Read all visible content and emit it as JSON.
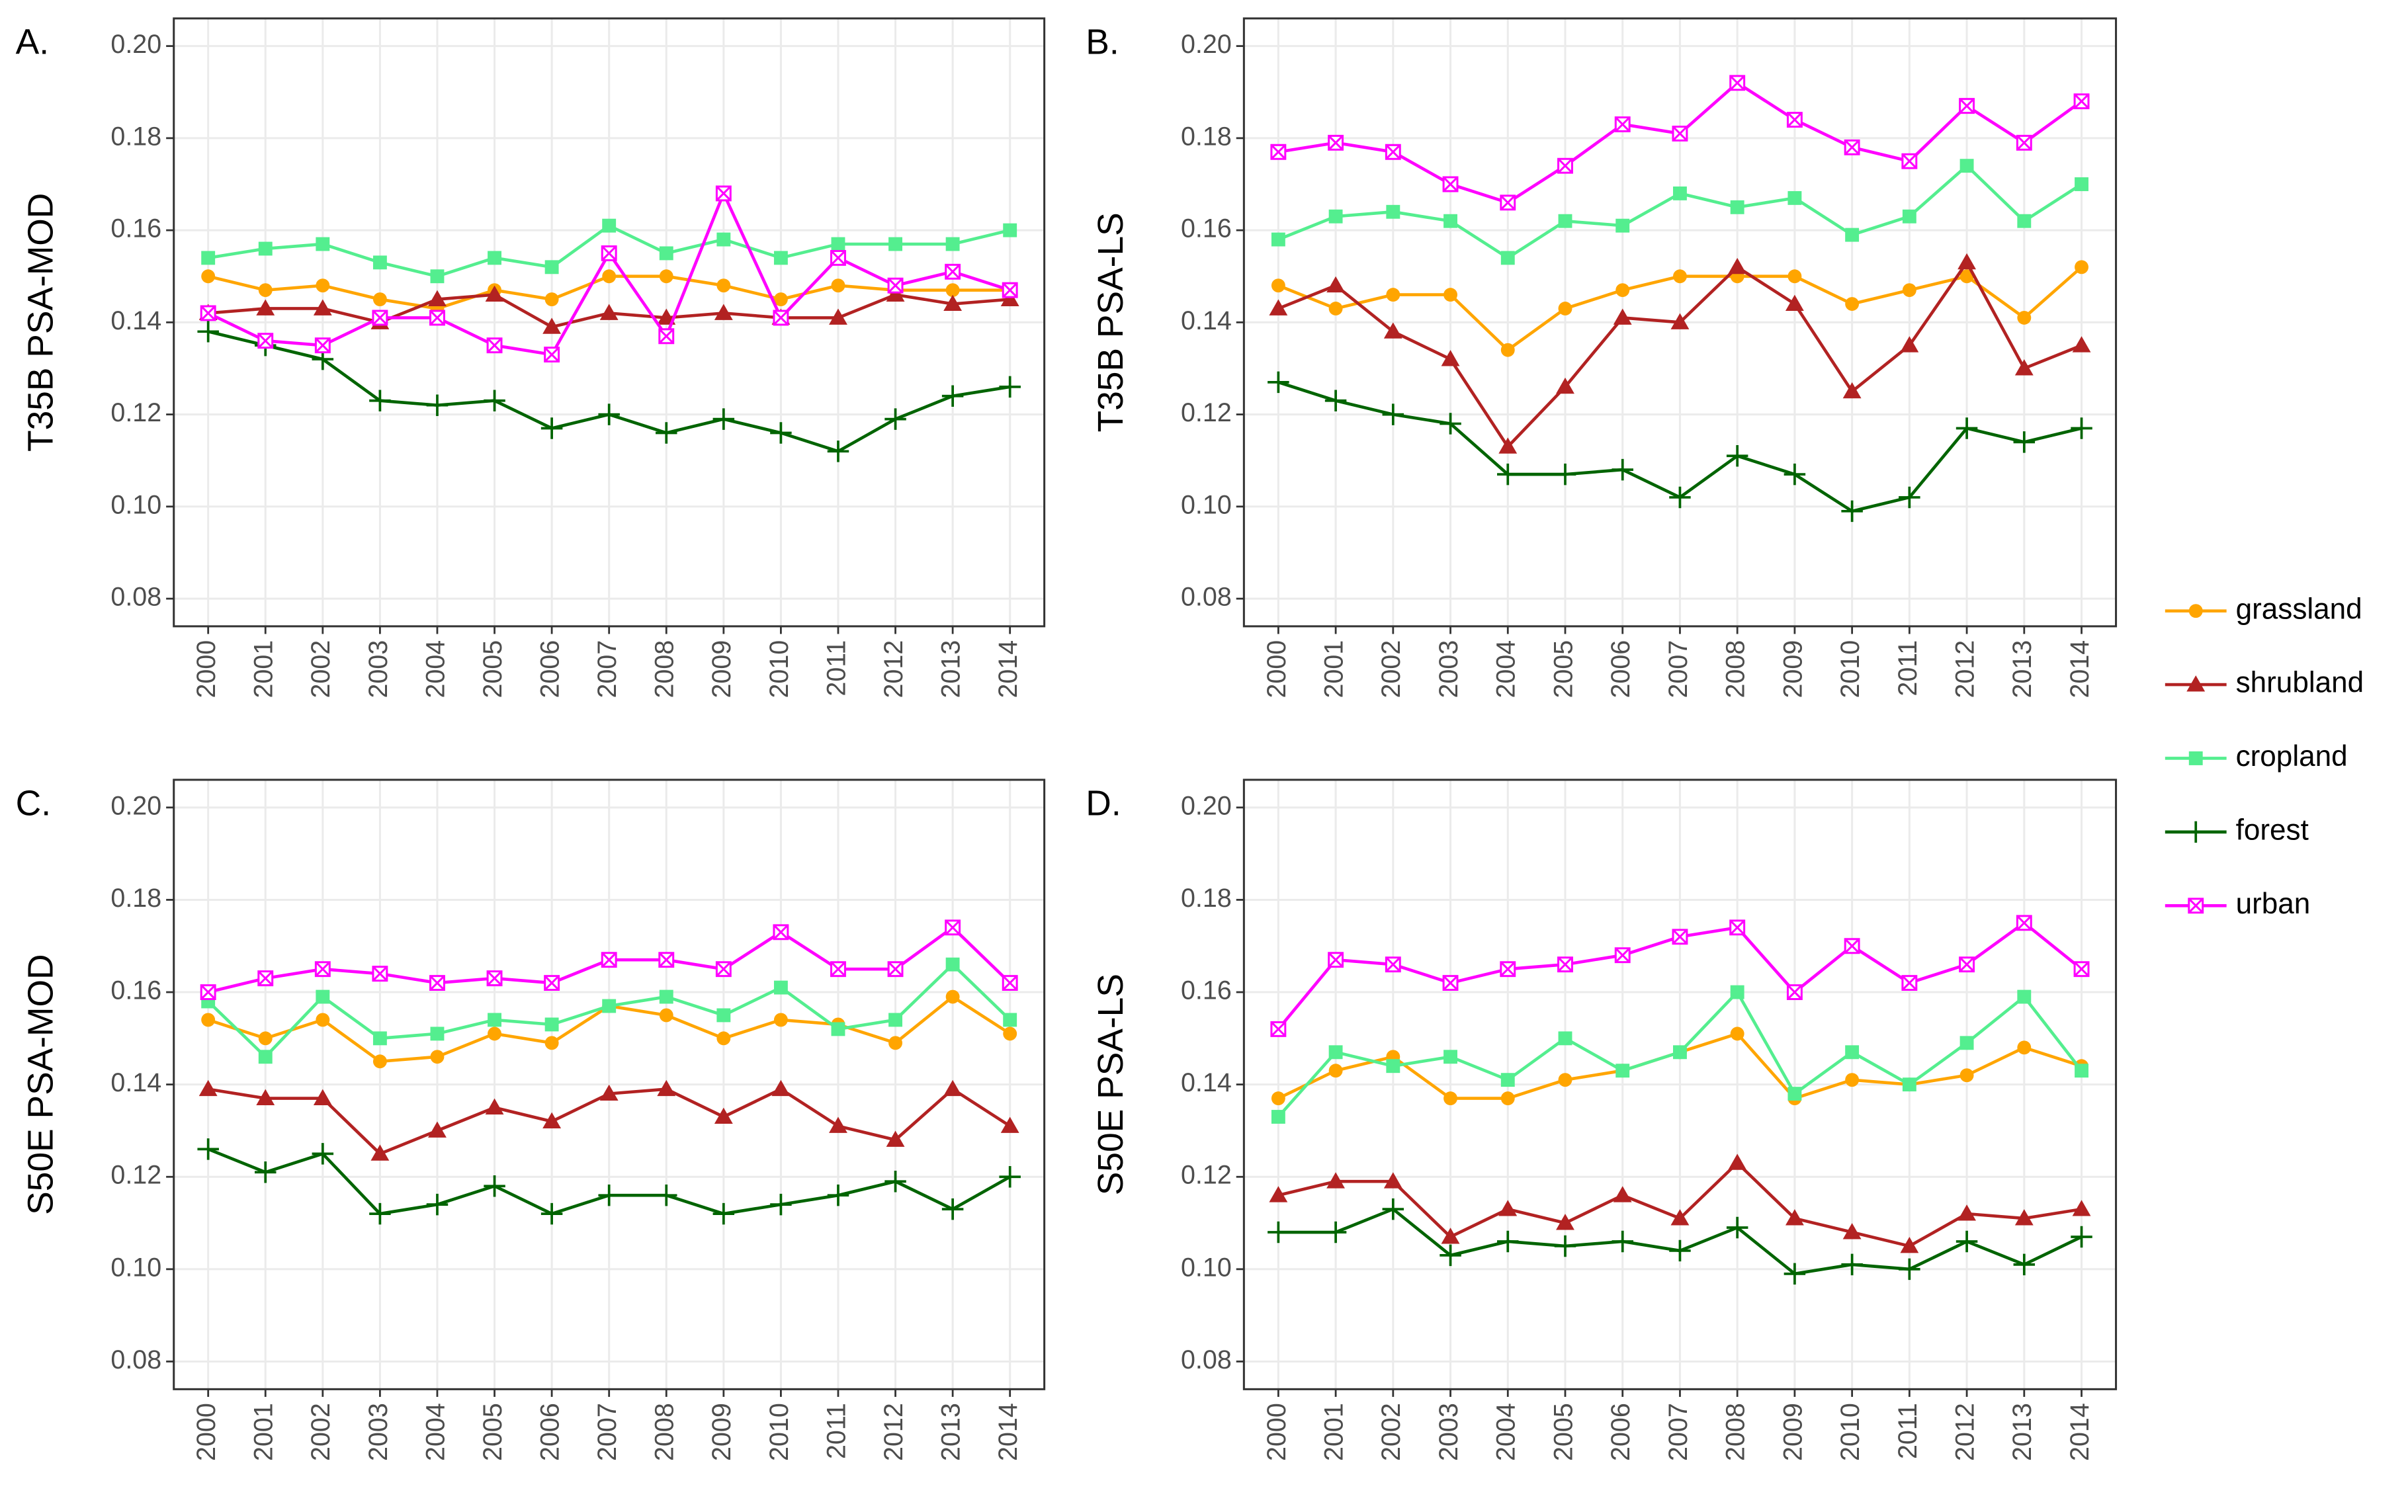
{
  "chart_data": [
    {
      "type": "line",
      "title": "A.",
      "ylabel": "T35B PSA-MOD",
      "categories": [
        "2000",
        "2001",
        "2002",
        "2003",
        "2004",
        "2005",
        "2006",
        "2007",
        "2008",
        "2009",
        "2010",
        "2011",
        "2012",
        "2013",
        "2014"
      ],
      "ylim": [
        0.074,
        0.206
      ],
      "yticks": [
        {
          "value": 0.08,
          "label": "0.08"
        },
        {
          "value": 0.1,
          "label": "0.10"
        },
        {
          "value": 0.12,
          "label": "0.12"
        },
        {
          "value": 0.14,
          "label": "0.14"
        },
        {
          "value": 0.16,
          "label": "0.16"
        },
        {
          "value": 0.18,
          "label": "0.18"
        },
        {
          "value": 0.2,
          "label": "0.20"
        }
      ],
      "grid": true,
      "legend": "right",
      "series": [
        {
          "name": "grassland",
          "color": "#ffa500",
          "marker": "circle",
          "values": [
            0.15,
            0.147,
            0.148,
            0.145,
            0.143,
            0.147,
            0.145,
            0.15,
            0.15,
            0.148,
            0.145,
            0.148,
            0.147,
            0.147,
            0.147
          ]
        },
        {
          "name": "shrubland",
          "color": "#b22222",
          "marker": "triangle",
          "values": [
            0.142,
            0.143,
            0.143,
            0.14,
            0.145,
            0.146,
            0.139,
            0.142,
            0.141,
            0.142,
            0.141,
            0.141,
            0.146,
            0.144,
            0.145
          ]
        },
        {
          "name": "cropland",
          "color": "#54ee8f",
          "marker": "square",
          "values": [
            0.154,
            0.156,
            0.157,
            0.153,
            0.15,
            0.154,
            0.152,
            0.161,
            0.155,
            0.158,
            0.154,
            0.157,
            0.157,
            0.157,
            0.16
          ]
        },
        {
          "name": "forest",
          "color": "#006400",
          "marker": "plus",
          "values": [
            0.138,
            0.135,
            0.132,
            0.123,
            0.122,
            0.123,
            0.117,
            0.12,
            0.116,
            0.119,
            0.116,
            0.112,
            0.119,
            0.124,
            0.126
          ]
        },
        {
          "name": "urban",
          "color": "#ff00ff",
          "marker": "square-x",
          "values": [
            0.142,
            0.136,
            0.135,
            0.141,
            0.141,
            0.135,
            0.133,
            0.155,
            0.137,
            0.168,
            0.141,
            0.154,
            0.148,
            0.151,
            0.147
          ]
        }
      ]
    },
    {
      "type": "line",
      "title": "B.",
      "ylabel": "T35B PSA-LS",
      "categories": [
        "2000",
        "2001",
        "2002",
        "2003",
        "2004",
        "2005",
        "2006",
        "2007",
        "2008",
        "2009",
        "2010",
        "2011",
        "2012",
        "2013",
        "2014"
      ],
      "ylim": [
        0.074,
        0.206
      ],
      "yticks": [
        {
          "value": 0.08,
          "label": "0.08"
        },
        {
          "value": 0.1,
          "label": "0.10"
        },
        {
          "value": 0.12,
          "label": "0.12"
        },
        {
          "value": 0.14,
          "label": "0.14"
        },
        {
          "value": 0.16,
          "label": "0.16"
        },
        {
          "value": 0.18,
          "label": "0.18"
        },
        {
          "value": 0.2,
          "label": "0.20"
        }
      ],
      "grid": true,
      "series": [
        {
          "name": "grassland",
          "color": "#ffa500",
          "marker": "circle",
          "values": [
            0.148,
            0.143,
            0.146,
            0.146,
            0.134,
            0.143,
            0.147,
            0.15,
            0.15,
            0.15,
            0.144,
            0.147,
            0.15,
            0.141,
            0.152
          ]
        },
        {
          "name": "shrubland",
          "color": "#b22222",
          "marker": "triangle",
          "values": [
            0.143,
            0.148,
            0.138,
            0.132,
            0.113,
            0.126,
            0.141,
            0.14,
            0.152,
            0.144,
            0.125,
            0.135,
            0.153,
            0.13,
            0.135
          ]
        },
        {
          "name": "cropland",
          "color": "#54ee8f",
          "marker": "square",
          "values": [
            0.158,
            0.163,
            0.164,
            0.162,
            0.154,
            0.162,
            0.161,
            0.168,
            0.165,
            0.167,
            0.159,
            0.163,
            0.174,
            0.162,
            0.17
          ]
        },
        {
          "name": "forest",
          "color": "#006400",
          "marker": "plus",
          "values": [
            0.127,
            0.123,
            0.12,
            0.118,
            0.107,
            0.107,
            0.108,
            0.102,
            0.111,
            0.107,
            0.099,
            0.102,
            0.117,
            0.114,
            0.117
          ]
        },
        {
          "name": "urban",
          "color": "#ff00ff",
          "marker": "square-x",
          "values": [
            0.177,
            0.179,
            0.177,
            0.17,
            0.166,
            0.174,
            0.183,
            0.181,
            0.192,
            0.184,
            0.178,
            0.175,
            0.187,
            0.179,
            0.188
          ]
        }
      ]
    },
    {
      "type": "line",
      "title": "C.",
      "ylabel": "S50E PSA-MOD",
      "categories": [
        "2000",
        "2001",
        "2002",
        "2003",
        "2004",
        "2005",
        "2006",
        "2007",
        "2008",
        "2009",
        "2010",
        "2011",
        "2012",
        "2013",
        "2014"
      ],
      "ylim": [
        0.074,
        0.206
      ],
      "yticks": [
        {
          "value": 0.08,
          "label": "0.08"
        },
        {
          "value": 0.1,
          "label": "0.10"
        },
        {
          "value": 0.12,
          "label": "0.12"
        },
        {
          "value": 0.14,
          "label": "0.14"
        },
        {
          "value": 0.16,
          "label": "0.16"
        },
        {
          "value": 0.18,
          "label": "0.18"
        },
        {
          "value": 0.2,
          "label": "0.20"
        }
      ],
      "grid": true,
      "series": [
        {
          "name": "grassland",
          "color": "#ffa500",
          "marker": "circle",
          "values": [
            0.154,
            0.15,
            0.154,
            0.145,
            0.146,
            0.151,
            0.149,
            0.157,
            0.155,
            0.15,
            0.154,
            0.153,
            0.149,
            0.159,
            0.151
          ]
        },
        {
          "name": "shrubland",
          "color": "#b22222",
          "marker": "triangle",
          "values": [
            0.139,
            0.137,
            0.137,
            0.125,
            0.13,
            0.135,
            0.132,
            0.138,
            0.139,
            0.133,
            0.139,
            0.131,
            0.128,
            0.139,
            0.131
          ]
        },
        {
          "name": "cropland",
          "color": "#54ee8f",
          "marker": "square",
          "values": [
            0.158,
            0.146,
            0.159,
            0.15,
            0.151,
            0.154,
            0.153,
            0.157,
            0.159,
            0.155,
            0.161,
            0.152,
            0.154,
            0.166,
            0.154
          ]
        },
        {
          "name": "forest",
          "color": "#006400",
          "marker": "plus",
          "values": [
            0.126,
            0.121,
            0.125,
            0.112,
            0.114,
            0.118,
            0.112,
            0.116,
            0.116,
            0.112,
            0.114,
            0.116,
            0.119,
            0.113,
            0.12
          ]
        },
        {
          "name": "urban",
          "color": "#ff00ff",
          "marker": "square-x",
          "values": [
            0.16,
            0.163,
            0.165,
            0.164,
            0.162,
            0.163,
            0.162,
            0.167,
            0.167,
            0.165,
            0.173,
            0.165,
            0.165,
            0.174,
            0.162
          ]
        }
      ]
    },
    {
      "type": "line",
      "title": "D.",
      "ylabel": "S50E PSA-LS",
      "categories": [
        "2000",
        "2001",
        "2002",
        "2003",
        "2004",
        "2005",
        "2006",
        "2007",
        "2008",
        "2009",
        "2010",
        "2011",
        "2012",
        "2013",
        "2014"
      ],
      "ylim": [
        0.074,
        0.206
      ],
      "yticks": [
        {
          "value": 0.08,
          "label": "0.08"
        },
        {
          "value": 0.1,
          "label": "0.10"
        },
        {
          "value": 0.12,
          "label": "0.12"
        },
        {
          "value": 0.14,
          "label": "0.14"
        },
        {
          "value": 0.16,
          "label": "0.16"
        },
        {
          "value": 0.18,
          "label": "0.18"
        },
        {
          "value": 0.2,
          "label": "0.20"
        }
      ],
      "grid": true,
      "series": [
        {
          "name": "grassland",
          "color": "#ffa500",
          "marker": "circle",
          "values": [
            0.137,
            0.143,
            0.146,
            0.137,
            0.137,
            0.141,
            0.143,
            0.147,
            0.151,
            0.137,
            0.141,
            0.14,
            0.142,
            0.148,
            0.144
          ]
        },
        {
          "name": "shrubland",
          "color": "#b22222",
          "marker": "triangle",
          "values": [
            0.116,
            0.119,
            0.119,
            0.107,
            0.113,
            0.11,
            0.116,
            0.111,
            0.123,
            0.111,
            0.108,
            0.105,
            0.112,
            0.111,
            0.113
          ]
        },
        {
          "name": "cropland",
          "color": "#54ee8f",
          "marker": "square",
          "values": [
            0.133,
            0.147,
            0.144,
            0.146,
            0.141,
            0.15,
            0.143,
            0.147,
            0.16,
            0.138,
            0.147,
            0.14,
            0.149,
            0.159,
            0.143
          ]
        },
        {
          "name": "forest",
          "color": "#006400",
          "marker": "plus",
          "values": [
            0.108,
            0.108,
            0.113,
            0.103,
            0.106,
            0.105,
            0.106,
            0.104,
            0.109,
            0.099,
            0.101,
            0.1,
            0.106,
            0.101,
            0.107
          ]
        },
        {
          "name": "urban",
          "color": "#ff00ff",
          "marker": "square-x",
          "values": [
            0.152,
            0.167,
            0.166,
            0.162,
            0.165,
            0.166,
            0.168,
            0.172,
            0.174,
            0.16,
            0.17,
            0.162,
            0.166,
            0.175,
            0.165
          ]
        }
      ]
    }
  ]
}
